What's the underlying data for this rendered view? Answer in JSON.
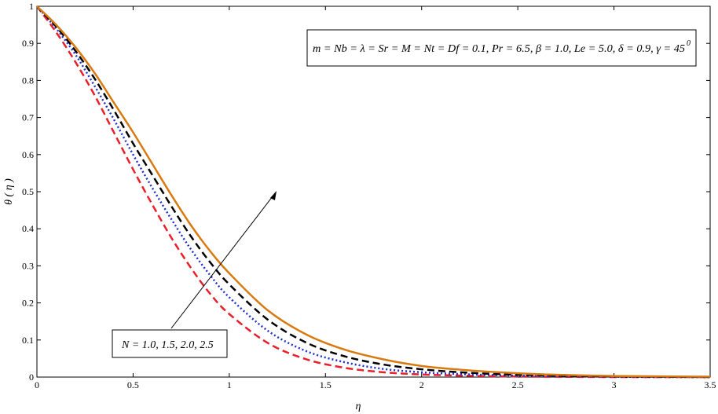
{
  "chart_data": {
    "type": "line",
    "title": "",
    "xlabel": "η",
    "ylabel": "θ ( η )",
    "xlim": [
      0,
      3.5
    ],
    "ylim": [
      0,
      1
    ],
    "grid": false,
    "xticks": [
      "0",
      "0.5",
      "1",
      "1.5",
      "2",
      "2.5",
      "3",
      "3.5"
    ],
    "yticks": [
      "0",
      "0.1",
      "0.2",
      "0.3",
      "0.4",
      "0.5",
      "0.6",
      "0.7",
      "0.8",
      "0.9",
      "1"
    ],
    "parameter_box": "m = Nb = λ = Sr = M = Nt = Df = 0.1, Pr = 6.5, β = 1.0, Le = 5.0, δ = 0.9, γ = 45",
    "parameter_box_superscript": "0",
    "arrow_label": "N = 1.0, 1.5, 2.0, 2.5",
    "x": [
      0,
      0.1,
      0.2,
      0.3,
      0.4,
      0.5,
      0.6,
      0.7,
      0.8,
      0.9,
      1.0,
      1.2,
      1.4,
      1.6,
      1.8,
      2.0,
      2.2,
      2.4,
      2.6,
      2.8,
      3.0,
      3.2,
      3.5
    ],
    "series": [
      {
        "color": "#e8202a",
        "dash": "dashed",
        "values": [
          1.0,
          0.93,
          0.85,
          0.76,
          0.66,
          0.56,
          0.465,
          0.375,
          0.295,
          0.225,
          0.17,
          0.092,
          0.048,
          0.025,
          0.013,
          0.007,
          0.004,
          0.002,
          0.001,
          0.0005,
          0.0,
          0.0,
          0.0
        ]
      },
      {
        "color": "#2030d0",
        "dash": "dotted",
        "values": [
          1.0,
          0.94,
          0.87,
          0.785,
          0.695,
          0.6,
          0.51,
          0.425,
          0.345,
          0.275,
          0.215,
          0.125,
          0.07,
          0.04,
          0.022,
          0.013,
          0.008,
          0.005,
          0.003,
          0.002,
          0.001,
          0.0,
          0.0
        ]
      },
      {
        "color": "#000000",
        "dash": "dashed",
        "values": [
          1.0,
          0.945,
          0.88,
          0.805,
          0.72,
          0.63,
          0.545,
          0.46,
          0.38,
          0.31,
          0.25,
          0.155,
          0.093,
          0.056,
          0.034,
          0.021,
          0.013,
          0.008,
          0.005,
          0.003,
          0.002,
          0.001,
          0.0
        ]
      },
      {
        "color": "#d87a10",
        "dash": "solid",
        "values": [
          1.0,
          0.95,
          0.89,
          0.82,
          0.74,
          0.66,
          0.575,
          0.49,
          0.41,
          0.34,
          0.28,
          0.18,
          0.115,
          0.074,
          0.048,
          0.03,
          0.02,
          0.013,
          0.008,
          0.005,
          0.003,
          0.002,
          0.001
        ]
      }
    ]
  }
}
